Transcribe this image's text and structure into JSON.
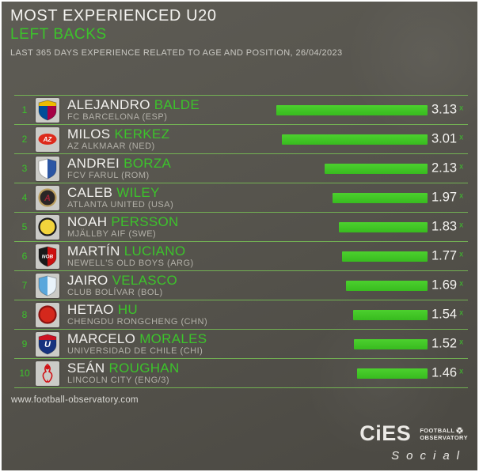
{
  "header": {
    "title": "MOST EXPERIENCED U20",
    "subtitle": "LEFT BACKS",
    "description": "LAST 365 DAYS EXPERIENCE RELATED TO AGE AND POSITION, 26/04/2023"
  },
  "chart_data": {
    "type": "bar",
    "orientation": "horizontal",
    "title": "MOST EXPERIENCED U20 LEFT BACKS",
    "unit_suffix": "x",
    "xlim": [
      0,
      3.3
    ],
    "categories": [
      "ALEJANDRO BALDE",
      "MILOS KERKEZ",
      "ANDREI BORZA",
      "CALEB WILEY",
      "NOAH PERSSON",
      "MARTÍN LUCIANO",
      "JAIRO VELASCO",
      "HETAO HU",
      "MARCELO MORALES",
      "SEÁN ROUGHAN"
    ],
    "values": [
      3.13,
      3.01,
      2.13,
      1.97,
      1.83,
      1.77,
      1.69,
      1.54,
      1.52,
      1.46
    ],
    "players": [
      {
        "rank": 1,
        "first_name": "ALEJANDRO",
        "last_name": "BALDE",
        "club": "FC BARCELONA (ESP)",
        "value": 3.13,
        "crest": {
          "name": "fc-barcelona-crest",
          "shape": "shield",
          "colors": [
            "#004d98",
            "#a50044",
            "#edbb00"
          ],
          "text": "",
          "text_color": "#ffffff"
        }
      },
      {
        "rank": 2,
        "first_name": "MILOS",
        "last_name": "KERKEZ",
        "club": "AZ ALKMAAR (NED)",
        "value": 3.01,
        "crest": {
          "name": "az-alkmaar-crest",
          "shape": "flag",
          "colors": [
            "#dd2a1b",
            "#ffffff"
          ],
          "text": "AZ",
          "text_color": "#ffffff"
        }
      },
      {
        "rank": 3,
        "first_name": "ANDREI",
        "last_name": "BORZA",
        "club": "FCV FARUL (ROM)",
        "value": 2.13,
        "crest": {
          "name": "fcv-farul-crest",
          "shape": "shield",
          "colors": [
            "#ffffff",
            "#2b56a4",
            ""
          ],
          "text": "",
          "text_color": "#ffffff"
        }
      },
      {
        "rank": 4,
        "first_name": "CALEB",
        "last_name": "WILEY",
        "club": "ATLANTA UNITED (USA)",
        "value": 1.97,
        "crest": {
          "name": "atlanta-united-crest",
          "shape": "circle",
          "colors": [
            "#2b2626",
            "#b89b5a"
          ],
          "text": "A",
          "text_color": "#9d2235"
        }
      },
      {
        "rank": 5,
        "first_name": "NOAH",
        "last_name": "PERSSON",
        "club": "MJÄLLBY AIF (SWE)",
        "value": 1.83,
        "crest": {
          "name": "mjallby-aif-crest",
          "shape": "circle",
          "colors": [
            "#f2d43c",
            "#1a1a1a"
          ],
          "text": "",
          "text_color": "#1a1a1a"
        }
      },
      {
        "rank": 6,
        "first_name": "MARTÍN",
        "last_name": "LUCIANO",
        "club": "NEWELL'S OLD BOYS (ARG)",
        "value": 1.77,
        "crest": {
          "name": "newells-old-boys-crest",
          "shape": "shield",
          "colors": [
            "#1a1a1a",
            "#cc1111",
            ""
          ],
          "text": "NOB",
          "text_color": "#ffffff"
        }
      },
      {
        "rank": 7,
        "first_name": "JAIRO",
        "last_name": "VELASCO",
        "club": "CLUB BOLÍVAR (BOL)",
        "value": 1.69,
        "crest": {
          "name": "club-bolivar-crest",
          "shape": "shield",
          "colors": [
            "#5aa7dc",
            "#e9f3fb",
            ""
          ],
          "text": "",
          "text_color": "#1b3c8c"
        }
      },
      {
        "rank": 8,
        "first_name": "HETAO",
        "last_name": "HU",
        "club": "CHENGDU RONGCHENG (CHN)",
        "value": 1.54,
        "crest": {
          "name": "chengdu-rongcheng-crest",
          "shape": "circle",
          "colors": [
            "#d4281c",
            "#8c1210"
          ],
          "text": "",
          "text_color": "#ffffff"
        }
      },
      {
        "rank": 9,
        "first_name": "MARCELO",
        "last_name": "MORALES",
        "club": "UNIVERSIDAD DE CHILE (CHI)",
        "value": 1.52,
        "crest": {
          "name": "universidad-de-chile-crest",
          "shape": "shield",
          "colors": [
            "#16337f",
            "",
            "#cc1122"
          ],
          "text": "U",
          "text_color": "#ffffff"
        }
      },
      {
        "rank": 10,
        "first_name": "SEÁN",
        "last_name": "ROUGHAN",
        "club": "LINCOLN CITY (ENG/3)",
        "value": 1.46,
        "crest": {
          "name": "lincoln-city-crest",
          "shape": "figure",
          "colors": [
            "#d01317",
            "#ffffff"
          ],
          "text": "",
          "text_color": "#ffffff"
        }
      }
    ]
  },
  "footer": {
    "website": "www.football-observatory.com",
    "logo": {
      "brand": "CiES",
      "org_line1": "FOOTBALL",
      "org_line2": "OBSERVATORY",
      "tagline": "Social"
    }
  },
  "colors": {
    "accent_green": "#3cc32b",
    "bar_green": "#3ec226",
    "separator_green": "#78c355",
    "background_gray": "#55534c",
    "text_white": "#f2f1ee",
    "text_gray": "#b3b1a9"
  }
}
